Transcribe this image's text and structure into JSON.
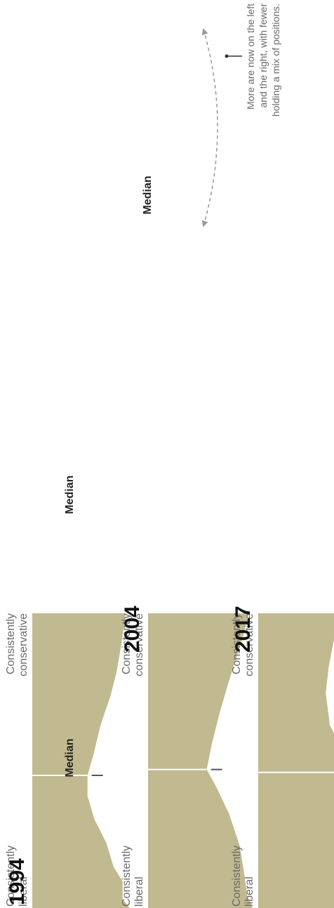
{
  "chart_data": {
    "type": "area",
    "orientation": "rotated-90-ccw",
    "colors": {
      "fill": "#c1b990",
      "median_line": "#ffffff",
      "tick": "#555555",
      "arrow": "#999999"
    },
    "panels": [
      {
        "year": "1994",
        "label_left_1": "Consistently",
        "label_left_2": "liberal",
        "label_right_1": "Consistently",
        "label_right_2": "conservative",
        "median_label": "Median",
        "median_x": 0.45,
        "profile": [
          [
            0,
            0.97
          ],
          [
            0.03,
            0.9
          ],
          [
            0.09,
            0.9
          ],
          [
            0.14,
            0.81
          ],
          [
            0.22,
            0.74
          ],
          [
            0.3,
            0.62
          ],
          [
            0.38,
            0.55
          ],
          [
            0.45,
            0.55
          ],
          [
            0.52,
            0.61
          ],
          [
            0.62,
            0.68
          ],
          [
            0.72,
            0.78
          ],
          [
            0.8,
            0.84
          ],
          [
            0.9,
            0.89
          ],
          [
            1.0,
            0.93
          ]
        ]
      },
      {
        "year": "2004",
        "label_left_1": "Consistently",
        "label_left_2": "liberal",
        "label_right_1": "Consistently",
        "label_right_2": "conservative",
        "median_label": "Median",
        "median_x": 0.47,
        "profile": [
          [
            0,
            0.98
          ],
          [
            0.04,
            0.93
          ],
          [
            0.12,
            0.9
          ],
          [
            0.21,
            0.86
          ],
          [
            0.32,
            0.76
          ],
          [
            0.41,
            0.64
          ],
          [
            0.47,
            0.55
          ],
          [
            0.56,
            0.6
          ],
          [
            0.66,
            0.67
          ],
          [
            0.76,
            0.75
          ],
          [
            0.84,
            0.82
          ],
          [
            0.92,
            0.89
          ],
          [
            1.0,
            0.94
          ]
        ]
      },
      {
        "year": "2017",
        "label_left_1": "Consistently",
        "label_left_2": "liberal",
        "label_right_1": "Consistently",
        "label_right_2": "conservative",
        "median_label": "Median",
        "median_x": 0.46,
        "profile": [
          [
            0,
            0.93
          ],
          [
            0.04,
            0.9
          ],
          [
            0.12,
            0.84
          ],
          [
            0.21,
            0.84
          ],
          [
            0.28,
            0.78
          ],
          [
            0.34,
            0.75
          ],
          [
            0.41,
            0.8
          ],
          [
            0.48,
            0.79
          ],
          [
            0.56,
            0.78
          ],
          [
            0.62,
            0.69
          ],
          [
            0.73,
            0.65
          ],
          [
            0.82,
            0.68
          ],
          [
            0.93,
            0.74
          ],
          [
            1.0,
            0.78
          ]
        ]
      }
    ],
    "annotation": {
      "line1": "More are now on the left",
      "line2": "and the right, with fewer",
      "line3": "holding a mix of positions."
    }
  }
}
